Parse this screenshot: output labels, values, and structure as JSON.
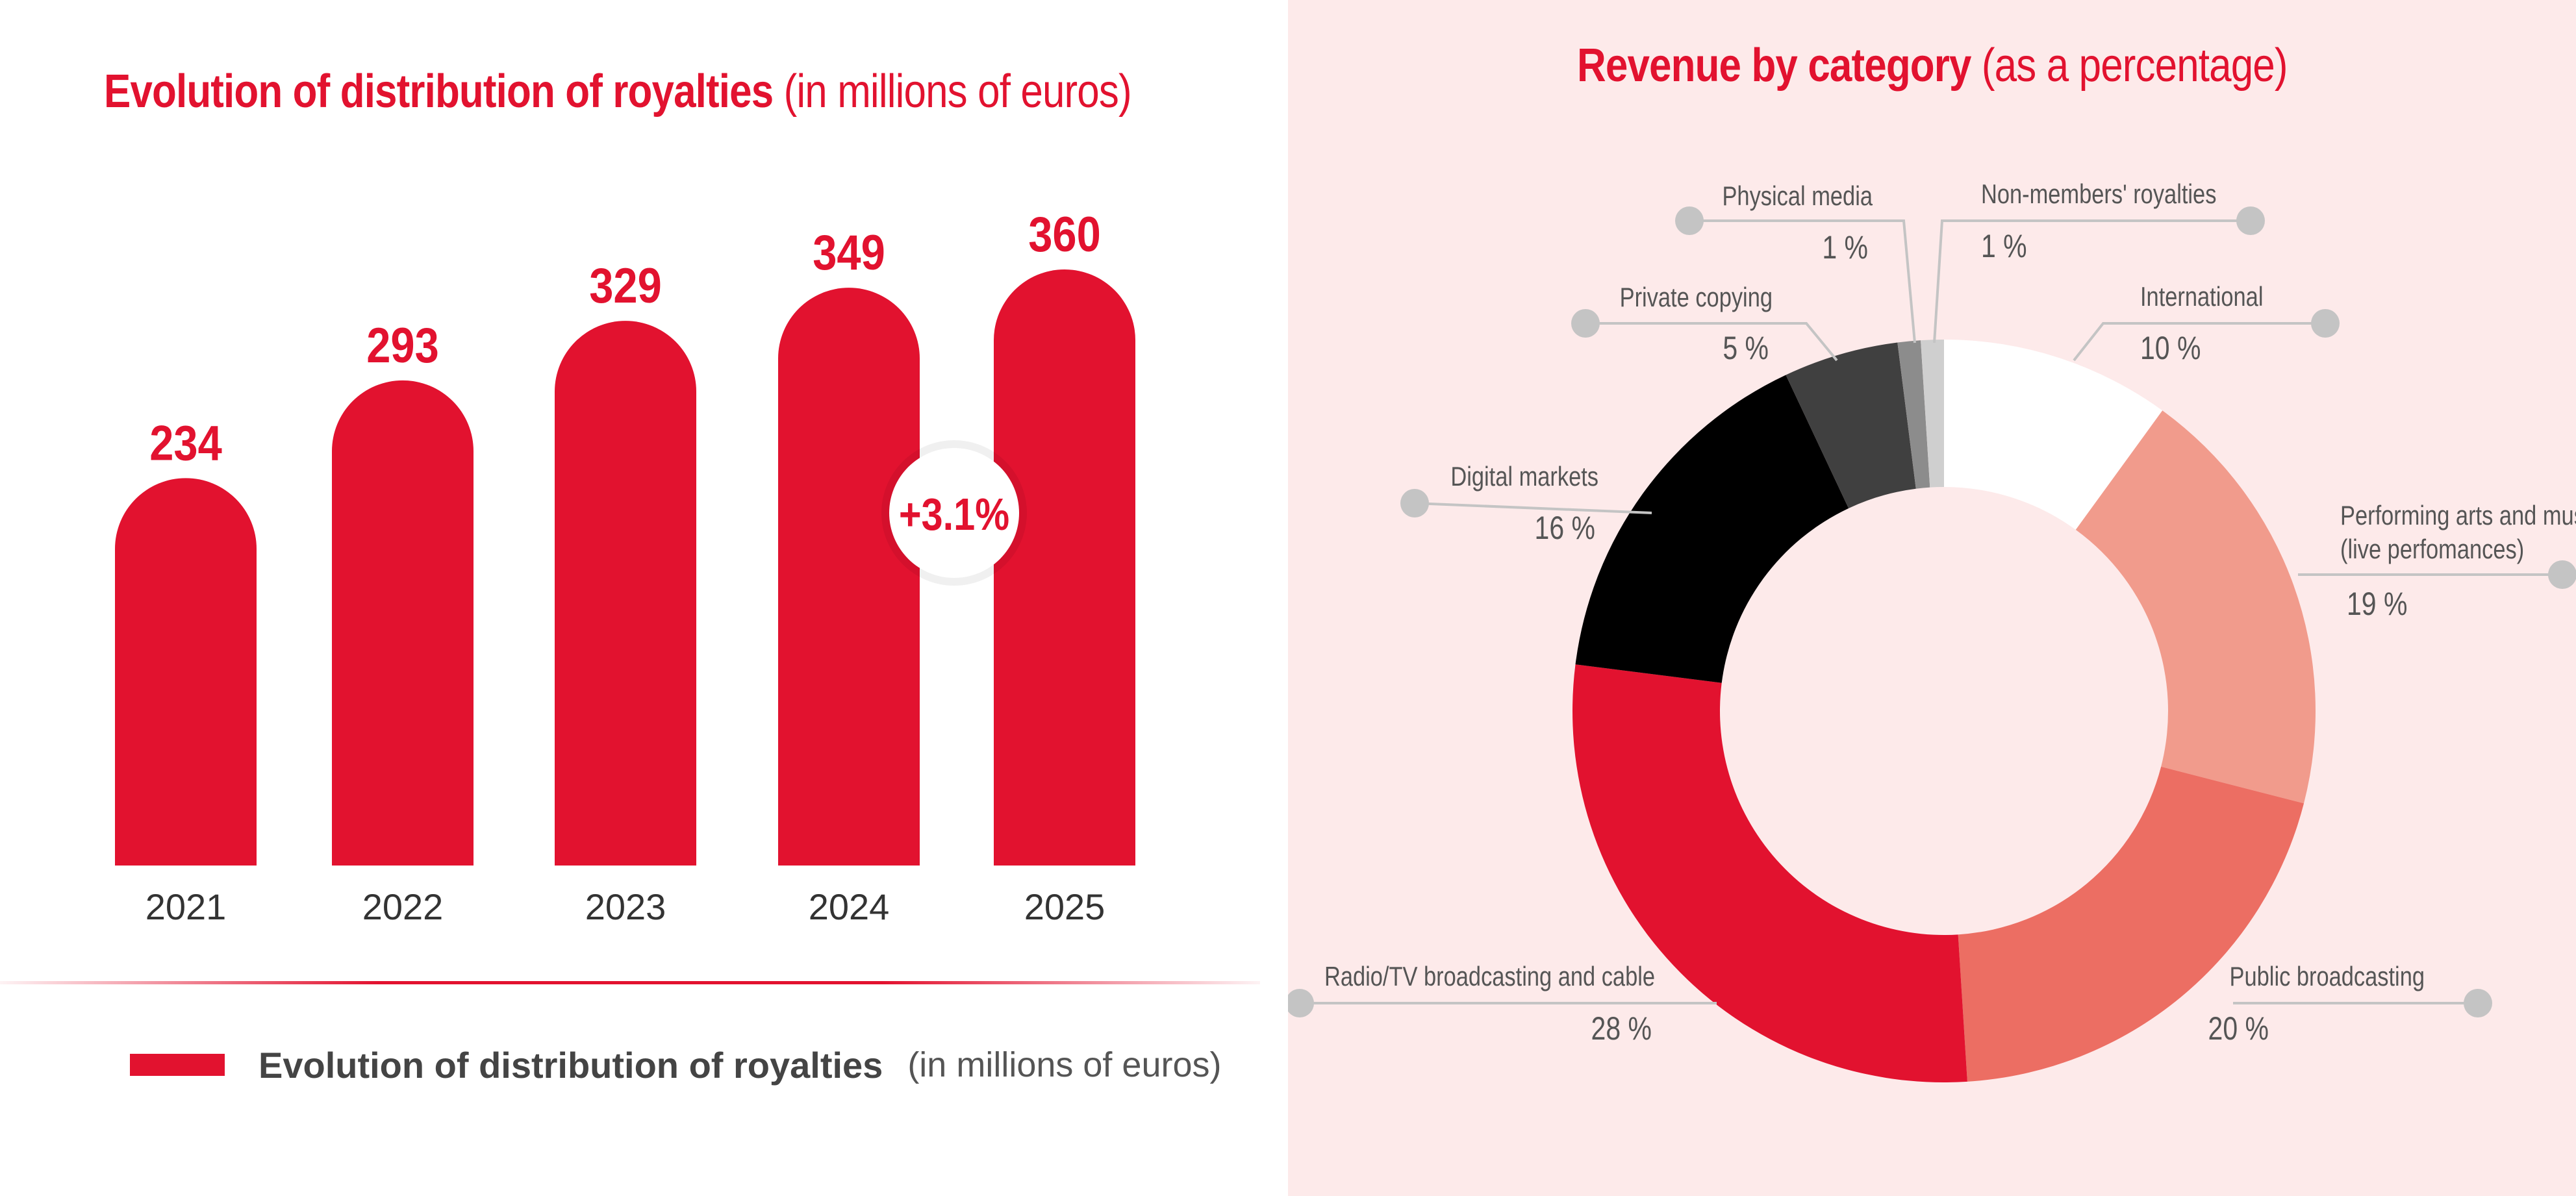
{
  "chart_data": [
    {
      "type": "bar",
      "title": "Evolution of distribution of royalties",
      "subtitle": "(in millions of euros)",
      "categories": [
        "2021",
        "2022",
        "2023",
        "2024",
        "2025"
      ],
      "values": [
        234,
        293,
        329,
        349,
        360
      ],
      "annotation": "+3.1%",
      "legend": {
        "label": "Evolution of distribution of royalties",
        "sublabel": "(in millions of euros)",
        "placement": "bottom"
      },
      "colors": {
        "bar": "#e2122f",
        "value_text": "#e2122f"
      }
    },
    {
      "type": "pie",
      "title": "Revenue by category",
      "subtitle": "(as a percentage)",
      "slices": [
        {
          "label": "International",
          "value": 10,
          "text": "10 %",
          "color": "#ffffff"
        },
        {
          "label": "Performing arts and music",
          "label_line2": "(live perfomances)",
          "value": 19,
          "text": "19 %",
          "color": "#f19b8c"
        },
        {
          "label": "Public broadcasting",
          "value": 20,
          "text": "20 %",
          "color": "#ec6e63"
        },
        {
          "label": "Radio/TV broadcasting and cable",
          "value": 28,
          "text": "28 %",
          "color": "#e2122f"
        },
        {
          "label": "Digital markets",
          "value": 16,
          "text": "16 %",
          "color": "#000000"
        },
        {
          "label": "Private copying",
          "value": 5,
          "text": "5 %",
          "color": "#404040"
        },
        {
          "label": "Physical media",
          "value": 1,
          "text": "1 %",
          "color": "#8c8c8c"
        },
        {
          "label": "Non-members' royalties",
          "value": 1,
          "text": "1 %",
          "color": "#cfcfcf"
        }
      ]
    }
  ]
}
